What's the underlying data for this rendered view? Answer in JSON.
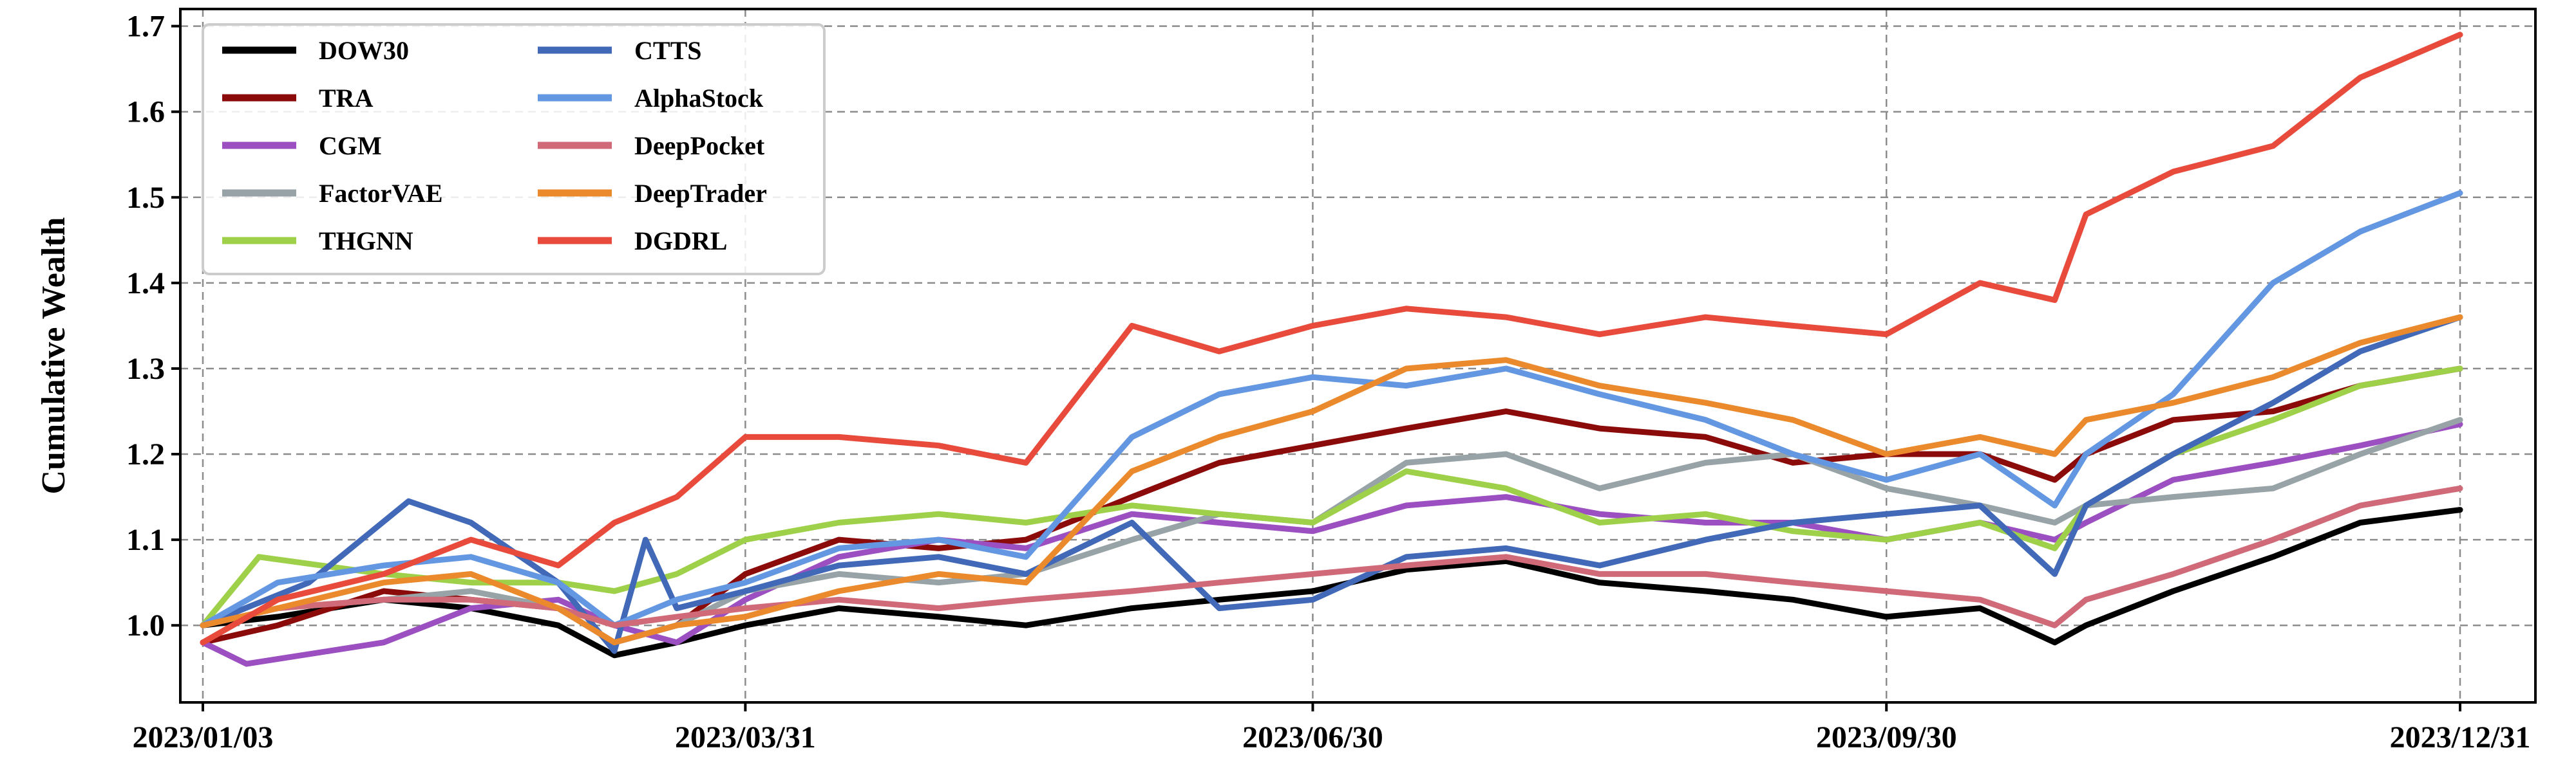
{
  "chart_data": {
    "type": "line",
    "title": "",
    "xlabel": "",
    "ylabel": "Cumulative Wealth",
    "x_ticks": [
      "2023/01/03",
      "2023/03/31",
      "2023/06/30",
      "2023/09/30",
      "2023/12/31"
    ],
    "x_range": [
      "2023/01/03",
      "2023/12/31"
    ],
    "y_ticks": [
      "1.0",
      "1.1",
      "1.2",
      "1.3",
      "1.4",
      "1.5",
      "1.6",
      "1.7"
    ],
    "ylim": [
      0.91,
      1.72
    ],
    "grid": true,
    "legend_position": "upper-left",
    "series": [
      {
        "name": "DOW30",
        "color": "#000000",
        "points": [
          [
            "2023/01/03",
            1.0
          ],
          [
            "2023/01/15",
            1.01
          ],
          [
            "2023/02/01",
            1.03
          ],
          [
            "2023/02/15",
            1.02
          ],
          [
            "2023/03/01",
            1.0
          ],
          [
            "2023/03/10",
            0.965
          ],
          [
            "2023/03/20",
            0.98
          ],
          [
            "2023/03/31",
            1.0
          ],
          [
            "2023/04/15",
            1.02
          ],
          [
            "2023/05/01",
            1.01
          ],
          [
            "2023/05/15",
            1.0
          ],
          [
            "2023/06/01",
            1.02
          ],
          [
            "2023/06/15",
            1.03
          ],
          [
            "2023/06/30",
            1.04
          ],
          [
            "2023/07/15",
            1.065
          ],
          [
            "2023/07/31",
            1.075
          ],
          [
            "2023/08/15",
            1.05
          ],
          [
            "2023/09/01",
            1.04
          ],
          [
            "2023/09/15",
            1.03
          ],
          [
            "2023/09/30",
            1.01
          ],
          [
            "2023/10/15",
            1.02
          ],
          [
            "2023/10/27",
            0.98
          ],
          [
            "2023/11/01",
            1.0
          ],
          [
            "2023/11/15",
            1.04
          ],
          [
            "2023/12/01",
            1.08
          ],
          [
            "2023/12/15",
            1.12
          ],
          [
            "2023/12/31",
            1.135
          ]
        ]
      },
      {
        "name": "TRA",
        "color": "#8b0a0a",
        "points": [
          [
            "2023/01/03",
            0.98
          ],
          [
            "2023/01/15",
            1.0
          ],
          [
            "2023/02/01",
            1.04
          ],
          [
            "2023/02/15",
            1.03
          ],
          [
            "2023/03/01",
            1.02
          ],
          [
            "2023/03/10",
            0.98
          ],
          [
            "2023/03/20",
            1.0
          ],
          [
            "2023/03/31",
            1.06
          ],
          [
            "2023/04/15",
            1.1
          ],
          [
            "2023/05/01",
            1.09
          ],
          [
            "2023/05/15",
            1.1
          ],
          [
            "2023/06/01",
            1.15
          ],
          [
            "2023/06/15",
            1.19
          ],
          [
            "2023/06/30",
            1.21
          ],
          [
            "2023/07/15",
            1.23
          ],
          [
            "2023/07/31",
            1.25
          ],
          [
            "2023/08/15",
            1.23
          ],
          [
            "2023/09/01",
            1.22
          ],
          [
            "2023/09/15",
            1.19
          ],
          [
            "2023/09/30",
            1.2
          ],
          [
            "2023/10/15",
            1.2
          ],
          [
            "2023/10/27",
            1.17
          ],
          [
            "2023/11/01",
            1.2
          ],
          [
            "2023/11/15",
            1.24
          ],
          [
            "2023/12/01",
            1.25
          ],
          [
            "2023/12/15",
            1.28
          ],
          [
            "2023/12/31",
            1.3
          ]
        ]
      },
      {
        "name": "CGM",
        "color": "#9b4fc0",
        "points": [
          [
            "2023/01/03",
            0.98
          ],
          [
            "2023/01/10",
            0.955
          ],
          [
            "2023/02/01",
            0.98
          ],
          [
            "2023/02/15",
            1.02
          ],
          [
            "2023/03/01",
            1.03
          ],
          [
            "2023/03/10",
            1.0
          ],
          [
            "2023/03/20",
            0.98
          ],
          [
            "2023/03/31",
            1.03
          ],
          [
            "2023/04/15",
            1.08
          ],
          [
            "2023/05/01",
            1.1
          ],
          [
            "2023/05/15",
            1.09
          ],
          [
            "2023/06/01",
            1.13
          ],
          [
            "2023/06/15",
            1.12
          ],
          [
            "2023/06/30",
            1.11
          ],
          [
            "2023/07/15",
            1.14
          ],
          [
            "2023/07/31",
            1.15
          ],
          [
            "2023/08/15",
            1.13
          ],
          [
            "2023/09/01",
            1.12
          ],
          [
            "2023/09/15",
            1.12
          ],
          [
            "2023/09/30",
            1.1
          ],
          [
            "2023/10/15",
            1.12
          ],
          [
            "2023/10/27",
            1.1
          ],
          [
            "2023/11/01",
            1.12
          ],
          [
            "2023/11/15",
            1.17
          ],
          [
            "2023/12/01",
            1.19
          ],
          [
            "2023/12/15",
            1.21
          ],
          [
            "2023/12/31",
            1.235
          ]
        ]
      },
      {
        "name": "FactorVAE",
        "color": "#97a3a6",
        "points": [
          [
            "2023/01/03",
            1.0
          ],
          [
            "2023/01/15",
            1.02
          ],
          [
            "2023/02/01",
            1.03
          ],
          [
            "2023/02/15",
            1.04
          ],
          [
            "2023/03/01",
            1.02
          ],
          [
            "2023/03/10",
            0.98
          ],
          [
            "2023/03/20",
            1.0
          ],
          [
            "2023/03/31",
            1.04
          ],
          [
            "2023/04/15",
            1.06
          ],
          [
            "2023/05/01",
            1.05
          ],
          [
            "2023/05/15",
            1.06
          ],
          [
            "2023/06/01",
            1.1
          ],
          [
            "2023/06/15",
            1.13
          ],
          [
            "2023/06/30",
            1.12
          ],
          [
            "2023/07/15",
            1.19
          ],
          [
            "2023/07/31",
            1.2
          ],
          [
            "2023/08/15",
            1.16
          ],
          [
            "2023/09/01",
            1.19
          ],
          [
            "2023/09/15",
            1.2
          ],
          [
            "2023/09/30",
            1.16
          ],
          [
            "2023/10/15",
            1.14
          ],
          [
            "2023/10/27",
            1.12
          ],
          [
            "2023/11/01",
            1.14
          ],
          [
            "2023/11/15",
            1.15
          ],
          [
            "2023/12/01",
            1.16
          ],
          [
            "2023/12/15",
            1.2
          ],
          [
            "2023/12/31",
            1.24
          ]
        ]
      },
      {
        "name": "THGNN",
        "color": "#9fd04a",
        "points": [
          [
            "2023/01/03",
            1.0
          ],
          [
            "2023/01/12",
            1.08
          ],
          [
            "2023/02/01",
            1.06
          ],
          [
            "2023/02/15",
            1.05
          ],
          [
            "2023/03/01",
            1.05
          ],
          [
            "2023/03/10",
            1.04
          ],
          [
            "2023/03/20",
            1.06
          ],
          [
            "2023/03/31",
            1.1
          ],
          [
            "2023/04/15",
            1.12
          ],
          [
            "2023/05/01",
            1.13
          ],
          [
            "2023/05/15",
            1.12
          ],
          [
            "2023/06/01",
            1.14
          ],
          [
            "2023/06/15",
            1.13
          ],
          [
            "2023/06/30",
            1.12
          ],
          [
            "2023/07/15",
            1.18
          ],
          [
            "2023/07/31",
            1.16
          ],
          [
            "2023/08/15",
            1.12
          ],
          [
            "2023/09/01",
            1.13
          ],
          [
            "2023/09/15",
            1.11
          ],
          [
            "2023/09/30",
            1.1
          ],
          [
            "2023/10/15",
            1.12
          ],
          [
            "2023/10/27",
            1.09
          ],
          [
            "2023/11/01",
            1.14
          ],
          [
            "2023/11/15",
            1.2
          ],
          [
            "2023/12/01",
            1.24
          ],
          [
            "2023/12/15",
            1.28
          ],
          [
            "2023/12/31",
            1.3
          ]
        ]
      },
      {
        "name": "CTTS",
        "color": "#4169b8",
        "points": [
          [
            "2023/01/03",
            1.0
          ],
          [
            "2023/01/20",
            1.05
          ],
          [
            "2023/02/05",
            1.145
          ],
          [
            "2023/02/15",
            1.12
          ],
          [
            "2023/03/01",
            1.05
          ],
          [
            "2023/03/10",
            0.97
          ],
          [
            "2023/03/15",
            1.1
          ],
          [
            "2023/03/20",
            1.02
          ],
          [
            "2023/03/31",
            1.04
          ],
          [
            "2023/04/15",
            1.07
          ],
          [
            "2023/05/01",
            1.08
          ],
          [
            "2023/05/15",
            1.06
          ],
          [
            "2023/06/01",
            1.12
          ],
          [
            "2023/06/15",
            1.02
          ],
          [
            "2023/06/30",
            1.03
          ],
          [
            "2023/07/15",
            1.08
          ],
          [
            "2023/07/31",
            1.09
          ],
          [
            "2023/08/15",
            1.07
          ],
          [
            "2023/09/01",
            1.1
          ],
          [
            "2023/09/15",
            1.12
          ],
          [
            "2023/09/30",
            1.13
          ],
          [
            "2023/10/15",
            1.14
          ],
          [
            "2023/10/27",
            1.06
          ],
          [
            "2023/11/01",
            1.14
          ],
          [
            "2023/11/15",
            1.2
          ],
          [
            "2023/12/01",
            1.26
          ],
          [
            "2023/12/15",
            1.32
          ],
          [
            "2023/12/31",
            1.36
          ]
        ]
      },
      {
        "name": "AlphaStock",
        "color": "#6397e2",
        "points": [
          [
            "2023/01/03",
            1.0
          ],
          [
            "2023/01/15",
            1.05
          ],
          [
            "2023/02/01",
            1.07
          ],
          [
            "2023/02/15",
            1.08
          ],
          [
            "2023/03/01",
            1.05
          ],
          [
            "2023/03/10",
            1.0
          ],
          [
            "2023/03/20",
            1.03
          ],
          [
            "2023/03/31",
            1.05
          ],
          [
            "2023/04/15",
            1.09
          ],
          [
            "2023/05/01",
            1.1
          ],
          [
            "2023/05/15",
            1.08
          ],
          [
            "2023/06/01",
            1.22
          ],
          [
            "2023/06/15",
            1.27
          ],
          [
            "2023/06/30",
            1.29
          ],
          [
            "2023/07/15",
            1.28
          ],
          [
            "2023/07/31",
            1.3
          ],
          [
            "2023/08/15",
            1.27
          ],
          [
            "2023/09/01",
            1.24
          ],
          [
            "2023/09/15",
            1.2
          ],
          [
            "2023/09/30",
            1.17
          ],
          [
            "2023/10/15",
            1.2
          ],
          [
            "2023/10/27",
            1.14
          ],
          [
            "2023/11/01",
            1.2
          ],
          [
            "2023/11/15",
            1.27
          ],
          [
            "2023/12/01",
            1.4
          ],
          [
            "2023/12/15",
            1.46
          ],
          [
            "2023/12/31",
            1.505
          ]
        ]
      },
      {
        "name": "DeepPocket",
        "color": "#d06a78",
        "points": [
          [
            "2023/01/03",
            1.0
          ],
          [
            "2023/01/15",
            1.02
          ],
          [
            "2023/02/01",
            1.03
          ],
          [
            "2023/02/15",
            1.03
          ],
          [
            "2023/03/01",
            1.02
          ],
          [
            "2023/03/10",
            1.0
          ],
          [
            "2023/03/20",
            1.01
          ],
          [
            "2023/03/31",
            1.02
          ],
          [
            "2023/04/15",
            1.03
          ],
          [
            "2023/05/01",
            1.02
          ],
          [
            "2023/05/15",
            1.03
          ],
          [
            "2023/06/01",
            1.04
          ],
          [
            "2023/06/15",
            1.05
          ],
          [
            "2023/06/30",
            1.06
          ],
          [
            "2023/07/15",
            1.07
          ],
          [
            "2023/07/31",
            1.08
          ],
          [
            "2023/08/15",
            1.06
          ],
          [
            "2023/09/01",
            1.06
          ],
          [
            "2023/09/15",
            1.05
          ],
          [
            "2023/09/30",
            1.04
          ],
          [
            "2023/10/15",
            1.03
          ],
          [
            "2023/10/27",
            1.0
          ],
          [
            "2023/11/01",
            1.03
          ],
          [
            "2023/11/15",
            1.06
          ],
          [
            "2023/12/01",
            1.1
          ],
          [
            "2023/12/15",
            1.14
          ],
          [
            "2023/12/31",
            1.16
          ]
        ]
      },
      {
        "name": "DeepTrader",
        "color": "#ea8a2c",
        "points": [
          [
            "2023/01/03",
            1.0
          ],
          [
            "2023/01/15",
            1.02
          ],
          [
            "2023/02/01",
            1.05
          ],
          [
            "2023/02/15",
            1.06
          ],
          [
            "2023/03/01",
            1.02
          ],
          [
            "2023/03/10",
            0.98
          ],
          [
            "2023/03/20",
            1.0
          ],
          [
            "2023/03/31",
            1.01
          ],
          [
            "2023/04/15",
            1.04
          ],
          [
            "2023/05/01",
            1.06
          ],
          [
            "2023/05/15",
            1.05
          ],
          [
            "2023/06/01",
            1.18
          ],
          [
            "2023/06/15",
            1.22
          ],
          [
            "2023/06/30",
            1.25
          ],
          [
            "2023/07/15",
            1.3
          ],
          [
            "2023/07/31",
            1.31
          ],
          [
            "2023/08/15",
            1.28
          ],
          [
            "2023/09/01",
            1.26
          ],
          [
            "2023/09/15",
            1.24
          ],
          [
            "2023/09/30",
            1.2
          ],
          [
            "2023/10/15",
            1.22
          ],
          [
            "2023/10/27",
            1.2
          ],
          [
            "2023/11/01",
            1.24
          ],
          [
            "2023/11/15",
            1.26
          ],
          [
            "2023/12/01",
            1.29
          ],
          [
            "2023/12/15",
            1.33
          ],
          [
            "2023/12/31",
            1.36
          ]
        ]
      },
      {
        "name": "DGDRL",
        "color": "#e84b3c",
        "points": [
          [
            "2023/01/03",
            0.98
          ],
          [
            "2023/01/15",
            1.03
          ],
          [
            "2023/02/01",
            1.06
          ],
          [
            "2023/02/15",
            1.1
          ],
          [
            "2023/03/01",
            1.07
          ],
          [
            "2023/03/10",
            1.12
          ],
          [
            "2023/03/20",
            1.15
          ],
          [
            "2023/03/31",
            1.22
          ],
          [
            "2023/04/15",
            1.22
          ],
          [
            "2023/05/01",
            1.21
          ],
          [
            "2023/05/15",
            1.19
          ],
          [
            "2023/06/01",
            1.35
          ],
          [
            "2023/06/15",
            1.32
          ],
          [
            "2023/06/30",
            1.35
          ],
          [
            "2023/07/15",
            1.37
          ],
          [
            "2023/07/31",
            1.36
          ],
          [
            "2023/08/15",
            1.34
          ],
          [
            "2023/09/01",
            1.36
          ],
          [
            "2023/09/15",
            1.35
          ],
          [
            "2023/09/30",
            1.34
          ],
          [
            "2023/10/15",
            1.4
          ],
          [
            "2023/10/27",
            1.38
          ],
          [
            "2023/11/01",
            1.48
          ],
          [
            "2023/11/15",
            1.53
          ],
          [
            "2023/12/01",
            1.56
          ],
          [
            "2023/12/15",
            1.64
          ],
          [
            "2023/12/31",
            1.69
          ]
        ]
      }
    ]
  }
}
